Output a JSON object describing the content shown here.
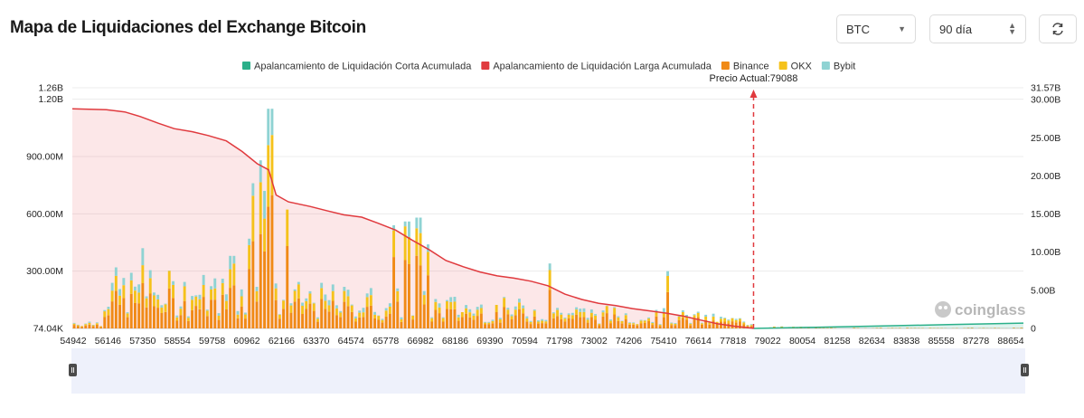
{
  "header": {
    "title": "Mapa de Liquidaciones del Exchange Bitcoin",
    "asset_select": "BTC",
    "range_select": "90 día",
    "refresh_icon": "refresh-icon"
  },
  "watermark": "coinglass",
  "chart_data": {
    "type": "bar",
    "legend": [
      {
        "name": "Apalancamiento de Liquidación Corta Acumulada",
        "color": "#2bb08a"
      },
      {
        "name": "Apalancamiento de Liquidación Larga Acumulada",
        "color": "#e03a3e"
      },
      {
        "name": "Binance",
        "color": "#f08a16"
      },
      {
        "name": "OKX",
        "color": "#f5c21b"
      },
      {
        "name": "Bybit",
        "color": "#8fd3d3"
      }
    ],
    "legend_position": "top-center",
    "x_ticks": [
      "54942",
      "56146",
      "57350",
      "58554",
      "59758",
      "60962",
      "62166",
      "63370",
      "64574",
      "65778",
      "66982",
      "68186",
      "69390",
      "70594",
      "71798",
      "73002",
      "74206",
      "75410",
      "76614",
      "77818",
      "79022",
      "80054",
      "81258",
      "82634",
      "83838",
      "85558",
      "87278",
      "88654"
    ],
    "x_range": [
      54942,
      88654
    ],
    "y_left_ticks": [
      "74.04K",
      "300.00M",
      "600.00M",
      "900.00M",
      "1.20B",
      "1.26B"
    ],
    "y_left_range": [
      74040,
      1260000000
    ],
    "y_right_ticks": [
      "0",
      "5.00B",
      "10.00B",
      "15.00B",
      "20.00B",
      "25.00B",
      "30.00B",
      "31.57B"
    ],
    "y_right_range": [
      0,
      31570000000
    ],
    "grid": true,
    "current_price": {
      "label": "Precio Actual:79088",
      "value": 79088
    },
    "long_cumulative_curve": {
      "x": [
        54942,
        56146,
        56800,
        57350,
        58000,
        58554,
        59200,
        59758,
        60400,
        60962,
        61500,
        61900,
        62166,
        62600,
        63370,
        64000,
        64574,
        65200,
        65778,
        66400,
        66982,
        67600,
        68186,
        68800,
        69390,
        70000,
        70594,
        71200,
        71798,
        72400,
        73002,
        73600,
        74206,
        74800,
        75410,
        76000,
        76614,
        77200,
        77818,
        78400,
        79022,
        79088
      ],
      "y": [
        28.8,
        28.7,
        28.4,
        27.8,
        26.9,
        26.2,
        25.8,
        25.3,
        24.6,
        23.2,
        21.6,
        20.8,
        17.5,
        16.6,
        16.0,
        15.4,
        14.9,
        14.6,
        13.8,
        12.9,
        11.6,
        10.3,
        8.9,
        8.1,
        7.4,
        6.9,
        6.6,
        6.2,
        5.6,
        4.5,
        3.8,
        3.3,
        3.0,
        2.6,
        2.3,
        2.0,
        1.6,
        1.1,
        0.6,
        0.3,
        0.05,
        0.0
      ]
    },
    "short_cumulative_curve": {
      "x": [
        79088,
        81258,
        83838,
        86000,
        88654
      ],
      "y": [
        0.0,
        0.15,
        0.35,
        0.5,
        0.7
      ]
    }
  }
}
